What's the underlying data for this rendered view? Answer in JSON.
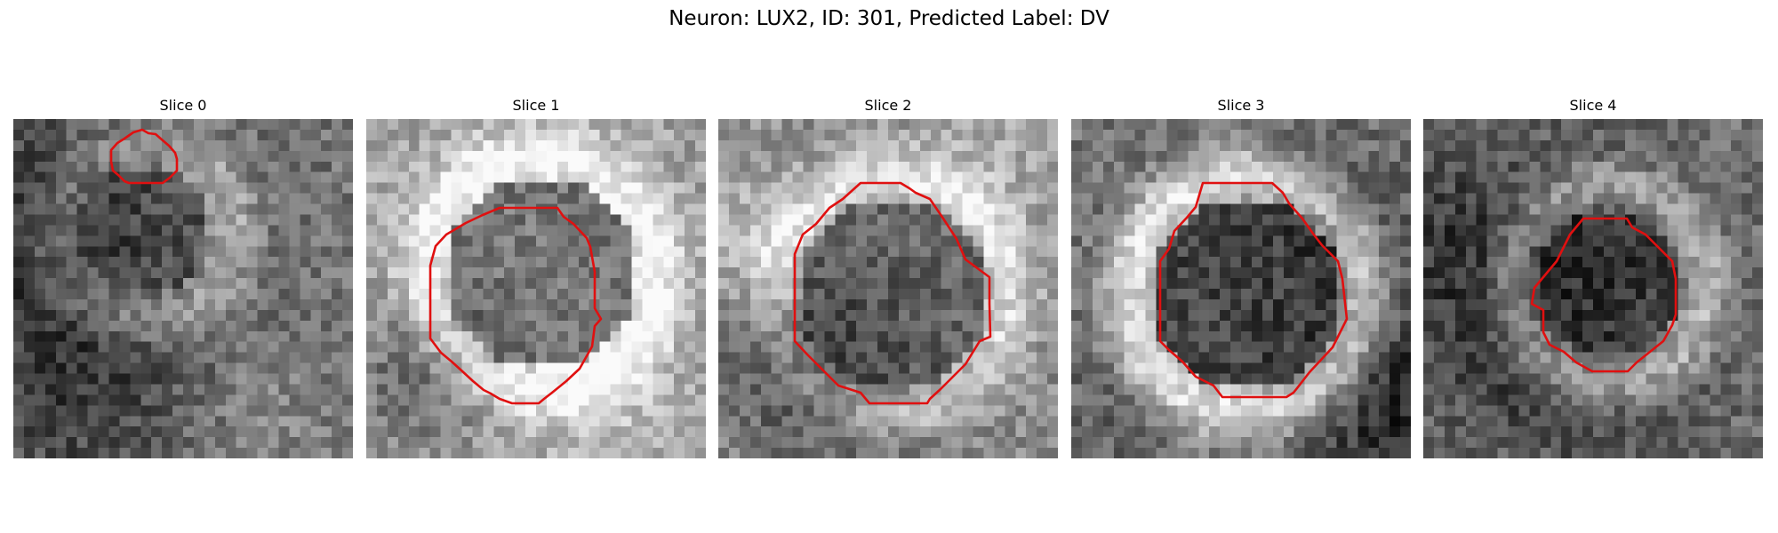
{
  "figure": {
    "title": "Neuron: LUX2, ID: 301, Predicted Label: DV"
  },
  "panels": [
    {
      "title": "Slice 0"
    },
    {
      "title": "Slice 1"
    },
    {
      "title": "Slice 2"
    },
    {
      "title": "Slice 3"
    },
    {
      "title": "Slice 4"
    }
  ],
  "colors": {
    "contour": "#e01010",
    "colormap": "gray"
  }
}
